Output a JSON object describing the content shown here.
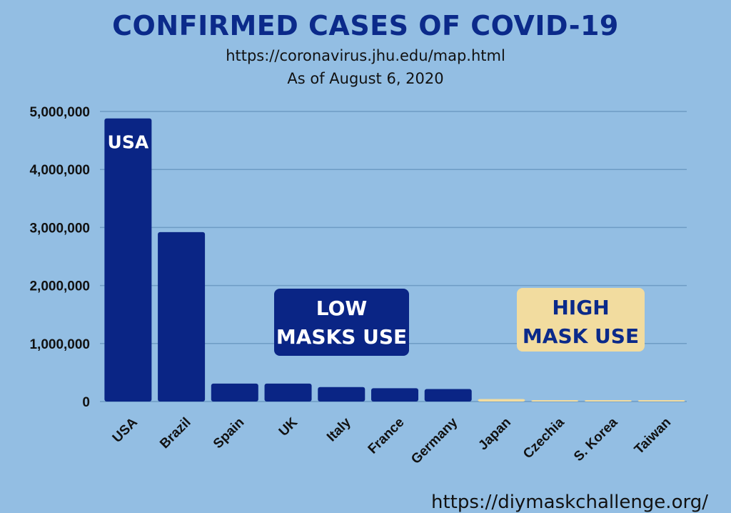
{
  "header": {
    "title": "CONFIRMED CASES OF COVID-19",
    "source": "https://coronavirus.jhu.edu/map.html",
    "date": "As of August 6, 2020"
  },
  "callouts": {
    "low": [
      "LOW",
      "MASKS USE"
    ],
    "high": [
      "HIGH",
      "MASK USE"
    ]
  },
  "footer": "https://diymaskchallenge.org/",
  "colors": {
    "background": "#93bee3",
    "low_mask_bar": "#0a2585",
    "high_mask_bar": "#f2dc9f",
    "title": "#0b2a8a",
    "gridline": "#6e9cc4"
  },
  "chart_data": {
    "type": "bar",
    "title": "CONFIRMED CASES OF COVID-19",
    "categories": [
      "USA",
      "Brazil",
      "Spain",
      "UK",
      "Italy",
      "France",
      "Germany",
      "Japan",
      "Czechia",
      "S. Korea",
      "Taiwan"
    ],
    "values": [
      4880000,
      2920000,
      310000,
      310000,
      250000,
      230000,
      215000,
      43000,
      18000,
      14500,
      500
    ],
    "groups": [
      "low",
      "low",
      "low",
      "low",
      "low",
      "low",
      "low",
      "high",
      "high",
      "high",
      "high"
    ],
    "bar_label": "USA",
    "yticks": [
      0,
      1000000,
      2000000,
      3000000,
      4000000,
      5000000
    ],
    "ytick_labels": [
      "0",
      "1,000,000",
      "2,000,000",
      "3,000,000",
      "4,000,000",
      "5,000,000"
    ],
    "ylim": [
      0,
      5000000
    ],
    "grid": true,
    "xlabel": "",
    "ylabel": ""
  }
}
